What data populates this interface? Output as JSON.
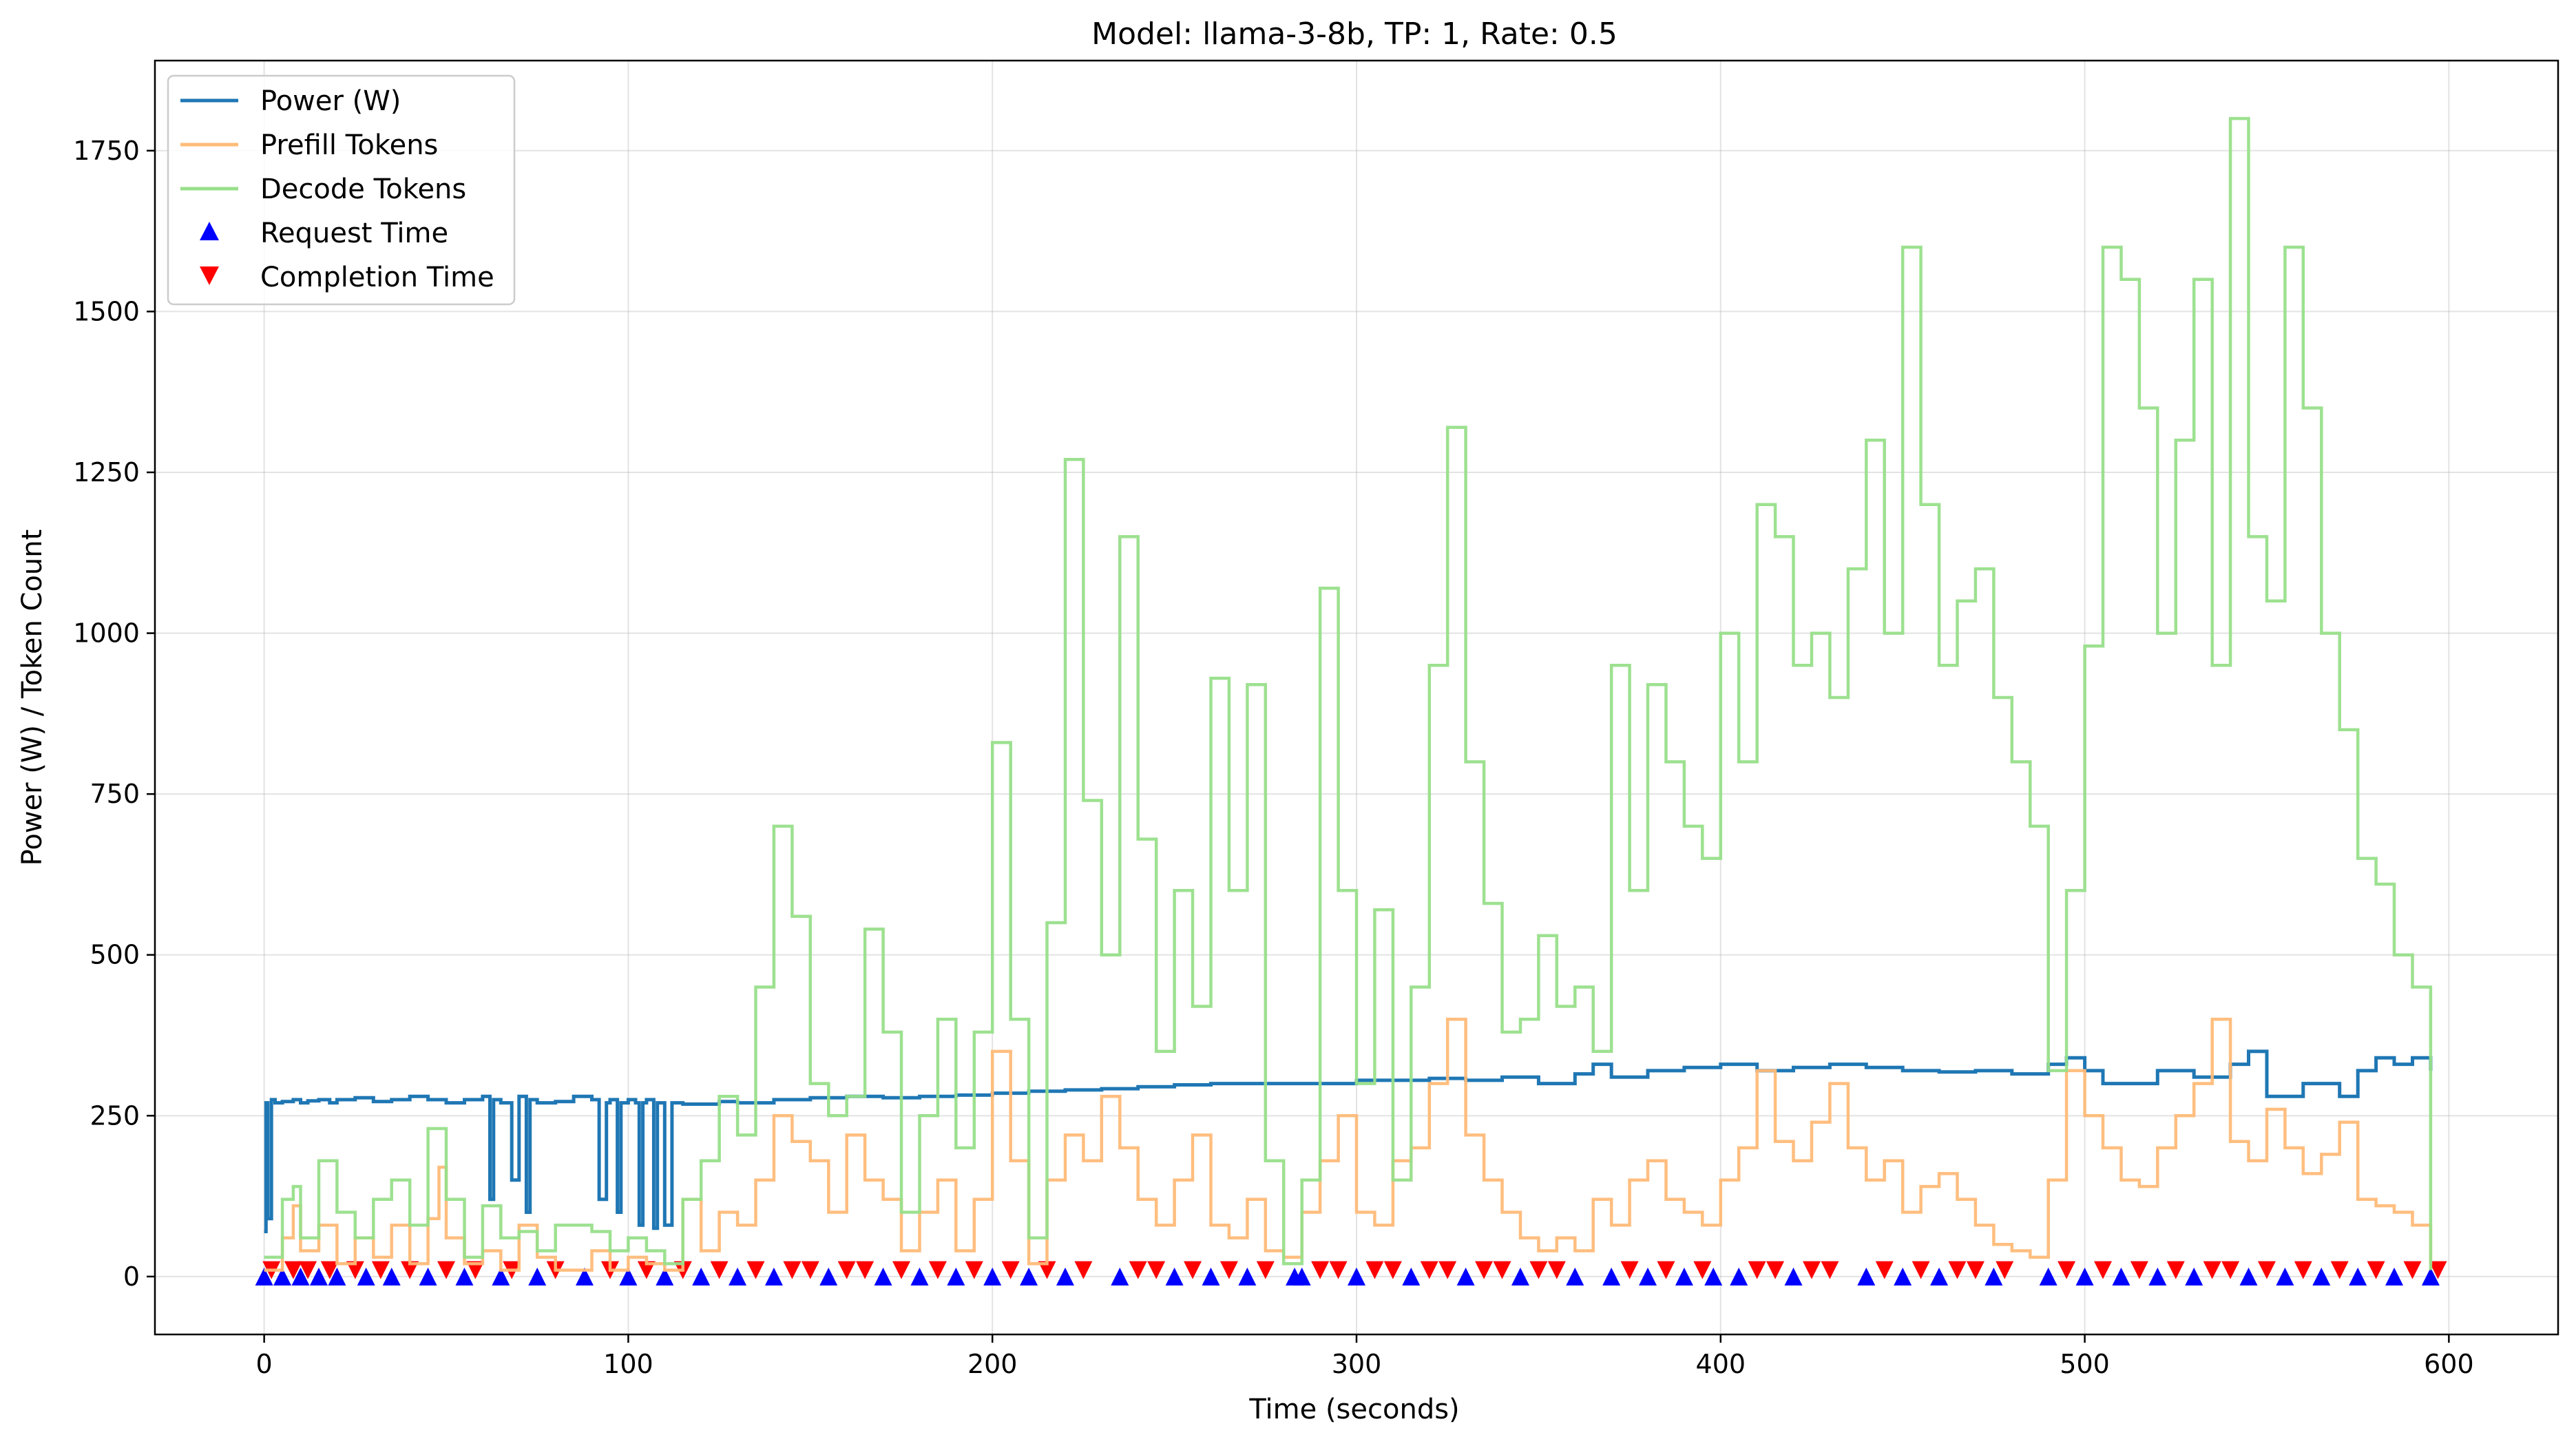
{
  "chart_data": {
    "type": "line",
    "title": "Model: llama-3-8b, TP: 1, Rate: 0.5",
    "xlabel": "Time (seconds)",
    "ylabel": "Power (W) / Token Count",
    "xlim": [
      -30,
      630
    ],
    "ylim": [
      -90,
      1890
    ],
    "xticks": [
      0,
      100,
      200,
      300,
      400,
      500,
      600
    ],
    "yticks": [
      0,
      250,
      500,
      750,
      1000,
      1250,
      1500,
      1750
    ],
    "grid": true,
    "legend_position": "top-left",
    "series": [
      {
        "name": "Power (W)",
        "kind": "line",
        "color": "#1f77b4",
        "x": [
          0,
          0.5,
          1,
          2,
          3,
          5,
          8,
          10,
          12,
          15,
          18,
          20,
          25,
          30,
          35,
          40,
          45,
          50,
          55,
          60,
          62,
          63,
          65,
          68,
          70,
          72,
          73,
          75,
          80,
          85,
          90,
          92,
          94,
          95,
          97,
          98,
          100,
          102,
          103,
          104,
          105,
          107,
          108,
          110,
          112,
          115,
          120,
          125,
          130,
          140,
          150,
          160,
          170,
          180,
          190,
          200,
          210,
          220,
          230,
          240,
          250,
          260,
          270,
          280,
          290,
          300,
          310,
          320,
          330,
          340,
          350,
          360,
          365,
          370,
          380,
          390,
          400,
          410,
          420,
          430,
          440,
          450,
          460,
          470,
          480,
          490,
          495,
          500,
          505,
          510,
          520,
          530,
          540,
          545,
          550,
          560,
          570,
          575,
          580,
          585,
          590,
          595
        ],
        "y": [
          70,
          270,
          90,
          275,
          270,
          272,
          275,
          270,
          273,
          275,
          270,
          275,
          278,
          272,
          275,
          280,
          275,
          270,
          275,
          280,
          120,
          275,
          270,
          150,
          280,
          100,
          275,
          270,
          272,
          280,
          275,
          120,
          270,
          275,
          100,
          270,
          275,
          270,
          80,
          270,
          275,
          75,
          270,
          80,
          270,
          268,
          268,
          272,
          270,
          275,
          278,
          280,
          278,
          280,
          282,
          285,
          288,
          290,
          292,
          295,
          298,
          300,
          300,
          300,
          300,
          305,
          305,
          308,
          305,
          310,
          300,
          315,
          330,
          310,
          320,
          325,
          330,
          320,
          325,
          330,
          325,
          320,
          318,
          320,
          315,
          330,
          340,
          320,
          300,
          300,
          320,
          310,
          330,
          350,
          280,
          300,
          280,
          320,
          340,
          330,
          340,
          320
        ]
      },
      {
        "name": "Prefill Tokens",
        "kind": "line",
        "color": "#ffbb78",
        "x": [
          0,
          5,
          8,
          10,
          15,
          20,
          25,
          30,
          35,
          40,
          45,
          48,
          50,
          55,
          60,
          65,
          70,
          75,
          80,
          90,
          95,
          100,
          105,
          110,
          115,
          120,
          125,
          130,
          135,
          140,
          145,
          150,
          155,
          160,
          165,
          170,
          175,
          180,
          185,
          190,
          195,
          200,
          205,
          210,
          215,
          220,
          225,
          230,
          235,
          240,
          245,
          250,
          255,
          260,
          265,
          270,
          275,
          280,
          285,
          290,
          295,
          300,
          305,
          310,
          315,
          320,
          325,
          330,
          335,
          340,
          345,
          350,
          355,
          360,
          365,
          370,
          375,
          380,
          385,
          390,
          395,
          400,
          405,
          410,
          415,
          420,
          425,
          430,
          435,
          440,
          445,
          450,
          455,
          460,
          465,
          470,
          475,
          480,
          485,
          490,
          495,
          500,
          505,
          510,
          515,
          520,
          525,
          530,
          535,
          540,
          545,
          550,
          555,
          560,
          565,
          570,
          575,
          580,
          585,
          590,
          595
        ],
        "y": [
          10,
          60,
          110,
          40,
          80,
          20,
          60,
          30,
          80,
          20,
          90,
          170,
          60,
          20,
          40,
          10,
          80,
          30,
          10,
          40,
          10,
          30,
          20,
          10,
          120,
          40,
          100,
          80,
          150,
          250,
          210,
          180,
          100,
          220,
          150,
          120,
          40,
          100,
          150,
          40,
          120,
          350,
          180,
          20,
          150,
          220,
          180,
          280,
          200,
          120,
          80,
          150,
          220,
          80,
          60,
          120,
          40,
          30,
          100,
          180,
          250,
          100,
          80,
          180,
          200,
          300,
          400,
          220,
          150,
          100,
          60,
          40,
          60,
          40,
          120,
          80,
          150,
          180,
          120,
          100,
          80,
          150,
          200,
          320,
          210,
          180,
          240,
          300,
          200,
          150,
          180,
          100,
          140,
          160,
          120,
          80,
          50,
          40,
          30,
          150,
          320,
          250,
          200,
          150,
          140,
          200,
          250,
          300,
          400,
          210,
          180,
          260,
          200,
          160,
          190,
          240,
          120,
          110,
          100,
          80,
          20
        ]
      },
      {
        "name": "Decode Tokens",
        "kind": "line",
        "color": "#98df8a",
        "x": [
          0,
          5,
          8,
          10,
          15,
          20,
          25,
          30,
          35,
          40,
          45,
          50,
          55,
          60,
          65,
          70,
          75,
          80,
          90,
          95,
          100,
          105,
          110,
          115,
          120,
          125,
          130,
          135,
          140,
          145,
          150,
          155,
          160,
          165,
          170,
          175,
          180,
          185,
          190,
          195,
          200,
          205,
          210,
          215,
          220,
          225,
          230,
          235,
          240,
          245,
          250,
          255,
          260,
          265,
          270,
          275,
          280,
          285,
          290,
          295,
          300,
          305,
          310,
          315,
          320,
          325,
          330,
          335,
          340,
          345,
          350,
          355,
          360,
          365,
          370,
          375,
          380,
          385,
          390,
          395,
          400,
          405,
          410,
          415,
          420,
          425,
          430,
          435,
          440,
          445,
          450,
          455,
          460,
          465,
          470,
          475,
          480,
          485,
          490,
          495,
          500,
          505,
          510,
          515,
          520,
          525,
          530,
          535,
          540,
          545,
          550,
          555,
          560,
          565,
          570,
          575,
          580,
          585,
          590,
          595
        ],
        "y": [
          30,
          120,
          140,
          60,
          180,
          100,
          60,
          120,
          150,
          80,
          230,
          120,
          30,
          110,
          60,
          70,
          40,
          80,
          70,
          40,
          60,
          40,
          20,
          120,
          180,
          280,
          220,
          450,
          700,
          560,
          300,
          250,
          280,
          540,
          380,
          100,
          250,
          400,
          200,
          380,
          830,
          400,
          60,
          550,
          1270,
          740,
          500,
          1150,
          680,
          350,
          600,
          420,
          930,
          600,
          920,
          180,
          20,
          150,
          1070,
          600,
          300,
          570,
          150,
          450,
          950,
          1320,
          800,
          580,
          380,
          400,
          530,
          420,
          450,
          350,
          950,
          600,
          920,
          800,
          700,
          650,
          1000,
          800,
          1200,
          1150,
          950,
          1000,
          900,
          1100,
          1300,
          1000,
          1600,
          1200,
          950,
          1050,
          1100,
          900,
          800,
          700,
          320,
          600,
          980,
          1600,
          1550,
          1350,
          1000,
          1300,
          1550,
          950,
          1800,
          1150,
          1050,
          1600,
          1350,
          1000,
          850,
          650,
          610,
          500,
          450,
          10
        ]
      },
      {
        "name": "Request Time",
        "kind": "scatter",
        "marker": "triangle-up",
        "color": "#0000ff",
        "x": [
          0,
          5,
          10,
          15,
          20,
          28,
          35,
          45,
          55,
          65,
          75,
          88,
          100,
          110,
          120,
          130,
          140,
          155,
          170,
          180,
          190,
          200,
          210,
          220,
          235,
          250,
          260,
          270,
          283,
          285,
          300,
          315,
          330,
          345,
          360,
          370,
          380,
          390,
          398,
          405,
          420,
          440,
          450,
          460,
          475,
          490,
          500,
          510,
          520,
          530,
          545,
          555,
          565,
          575,
          585,
          595
        ],
        "y": [
          0,
          0,
          0,
          0,
          0,
          0,
          0,
          0,
          0,
          0,
          0,
          0,
          0,
          0,
          0,
          0,
          0,
          0,
          0,
          0,
          0,
          0,
          0,
          0,
          0,
          0,
          0,
          0,
          0,
          0,
          0,
          0,
          0,
          0,
          0,
          0,
          0,
          0,
          0,
          0,
          0,
          0,
          0,
          0,
          0,
          0,
          0,
          0,
          0,
          0,
          0,
          0,
          0,
          0,
          0,
          0
        ]
      },
      {
        "name": "Completion Time",
        "kind": "scatter",
        "marker": "triangle-down",
        "color": "#ff0000",
        "x": [
          2,
          8,
          12,
          18,
          25,
          32,
          40,
          50,
          58,
          68,
          80,
          95,
          105,
          115,
          125,
          135,
          145,
          150,
          160,
          165,
          175,
          185,
          195,
          205,
          215,
          225,
          240,
          245,
          255,
          265,
          275,
          290,
          295,
          305,
          310,
          320,
          325,
          335,
          340,
          350,
          355,
          375,
          385,
          395,
          410,
          415,
          425,
          430,
          445,
          455,
          465,
          470,
          478,
          495,
          505,
          515,
          525,
          535,
          540,
          550,
          560,
          570,
          580,
          590,
          597
        ],
        "y": [
          10,
          10,
          10,
          10,
          10,
          10,
          10,
          10,
          10,
          10,
          10,
          10,
          10,
          10,
          10,
          10,
          10,
          10,
          10,
          10,
          10,
          10,
          10,
          10,
          10,
          10,
          10,
          10,
          10,
          10,
          10,
          10,
          10,
          10,
          10,
          10,
          10,
          10,
          10,
          10,
          10,
          10,
          10,
          10,
          10,
          10,
          10,
          10,
          10,
          10,
          10,
          10,
          10,
          10,
          10,
          10,
          10,
          10,
          10,
          10,
          10,
          10,
          10,
          10,
          10
        ]
      }
    ]
  }
}
